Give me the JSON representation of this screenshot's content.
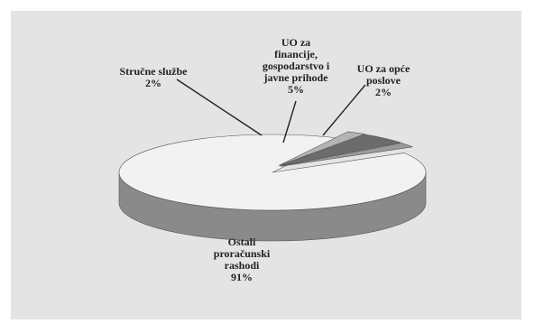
{
  "chart_data": {
    "type": "pie",
    "style": "3d-exploded",
    "slices": [
      {
        "label_lines": [
          "Ostali",
          "proračunski",
          "rashodi"
        ],
        "percent_label": "91%",
        "value": 91,
        "color": "#f2f2f2"
      },
      {
        "label_lines": [
          "Stručne službe"
        ],
        "percent_label": "2%",
        "value": 2,
        "color": "#b4b4b4"
      },
      {
        "label_lines": [
          "UO za",
          "financije,",
          "gospodarstvo i",
          "javne prihode"
        ],
        "percent_label": "5%",
        "value": 5,
        "color": "#6c6c6c"
      },
      {
        "label_lines": [
          "UO za opće",
          "poslove"
        ],
        "percent_label": "2%",
        "value": 2,
        "color": "#9a9a9a"
      }
    ],
    "legend": "none",
    "colors": {
      "background": "#e4e4e4",
      "side": "#8a8a8a",
      "outline": "#555555"
    }
  }
}
